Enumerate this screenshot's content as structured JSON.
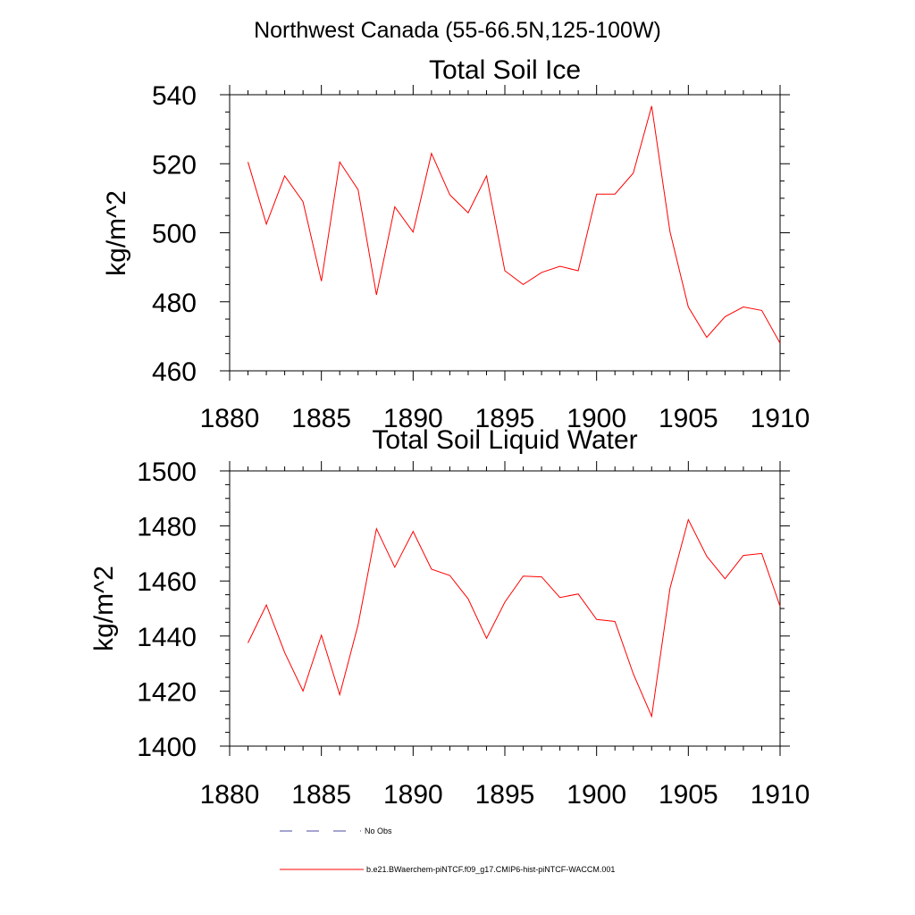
{
  "suptitle": "Northwest Canada (55-66.5N,125-100W)",
  "colors": {
    "model": "#ff0000",
    "obs": "#4a4aa0"
  },
  "legend": {
    "placement": "bottom",
    "entries": [
      {
        "label": "No Obs",
        "style": "dashed",
        "color": "#4a4aa0"
      },
      {
        "label": "b.e21.BWaerchem-piNTCF.f09_g17.CMIP6-hist-piNTCF-WACCM.001",
        "style": "solid",
        "color": "#ff0000"
      }
    ]
  },
  "chart_data": [
    {
      "type": "line",
      "title": "Total Soil Ice",
      "xlabel": "",
      "ylabel": "kg/m^2",
      "xlim": [
        1880,
        1910
      ],
      "ylim": [
        460,
        540
      ],
      "xticks": [
        1880,
        1885,
        1890,
        1895,
        1900,
        1905,
        1910
      ],
      "yticks": [
        460,
        480,
        500,
        520,
        540
      ],
      "grid": false,
      "series": [
        {
          "name": "b.e21.BWaerchem-piNTCF.f09_g17.CMIP6-hist-piNTCF-WACCM.001",
          "x": [
            1881,
            1882,
            1883,
            1884,
            1885,
            1886,
            1887,
            1888,
            1889,
            1890,
            1891,
            1892,
            1893,
            1894,
            1895,
            1896,
            1897,
            1898,
            1899,
            1900,
            1901,
            1902,
            1903,
            1904,
            1905,
            1906,
            1907,
            1908,
            1909,
            1910
          ],
          "y": [
            520.5,
            502.5,
            516.5,
            509,
            486,
            520.5,
            512.5,
            482,
            507.5,
            500.2,
            523,
            511,
            505.8,
            516.5,
            489,
            485,
            488.5,
            490.3,
            489,
            511.2,
            511.2,
            517.3,
            536.7,
            500.3,
            478.5,
            469.7,
            475.7,
            478.5,
            477.5,
            468
          ]
        }
      ]
    },
    {
      "type": "line",
      "title": "Total Soil Liquid Water",
      "xlabel": "",
      "ylabel": "kg/m^2",
      "xlim": [
        1880,
        1910
      ],
      "ylim": [
        1400,
        1500
      ],
      "xticks": [
        1880,
        1885,
        1890,
        1895,
        1900,
        1905,
        1910
      ],
      "yticks": [
        1400,
        1420,
        1440,
        1460,
        1480,
        1500
      ],
      "grid": false,
      "series": [
        {
          "name": "b.e21.BWaerchem-piNTCF.f09_g17.CMIP6-hist-piNTCF-WACCM.001",
          "x": [
            1881,
            1882,
            1883,
            1884,
            1885,
            1886,
            1887,
            1888,
            1889,
            1890,
            1891,
            1892,
            1893,
            1894,
            1895,
            1896,
            1897,
            1898,
            1899,
            1900,
            1901,
            1902,
            1903,
            1904,
            1905,
            1906,
            1907,
            1908,
            1909,
            1910
          ],
          "y": [
            1437.5,
            1451.3,
            1434,
            1420,
            1440.3,
            1418.7,
            1444,
            1479,
            1465,
            1478,
            1464.3,
            1462,
            1453.5,
            1439.2,
            1452.3,
            1461.8,
            1461.5,
            1454,
            1455.3,
            1446,
            1445.3,
            1426.3,
            1410.8,
            1457.3,
            1482.3,
            1469,
            1460.8,
            1469.3,
            1470,
            1450.8
          ]
        }
      ]
    }
  ]
}
